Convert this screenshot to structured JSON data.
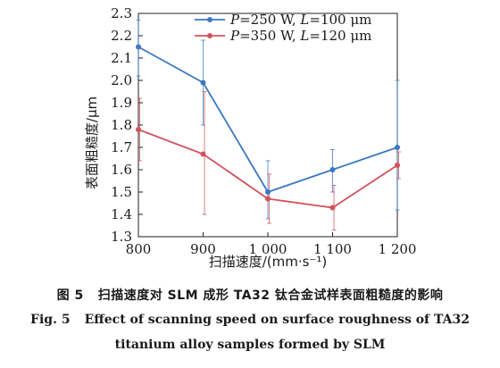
{
  "chart_data": {
    "type": "line",
    "xlabel": "扫描速度/(mm·s⁻¹)",
    "ylabel": "表面粗糙度/μm",
    "x": [
      800,
      900,
      1000,
      1100,
      1200
    ],
    "xticklabels": [
      "800",
      "900",
      "1 000",
      "1 100",
      "1 200"
    ],
    "xlim": [
      800,
      1200
    ],
    "ylim": [
      1.3,
      2.3
    ],
    "yticks": [
      1.3,
      1.4,
      1.5,
      1.6,
      1.7,
      1.8,
      1.9,
      2.0,
      2.1,
      2.2,
      2.3
    ],
    "yticklabels": [
      "1.3",
      "1.4",
      "1.5",
      "1.6",
      "1.7",
      "1.8",
      "1.9",
      "2.0",
      "2.1",
      "2.2",
      "2.3"
    ],
    "grid": false,
    "legend_position": "top",
    "series": [
      {
        "name_parts": [
          "P",
          "=250 W, ",
          "L",
          "=100 μm"
        ],
        "color": "#3a78c2",
        "values": [
          2.15,
          1.99,
          1.5,
          1.6,
          1.7
        ],
        "err_low": [
          2.02,
          1.8,
          1.38,
          1.5,
          1.42
        ],
        "err_high": [
          2.27,
          2.18,
          1.64,
          1.69,
          2.0
        ]
      },
      {
        "name_parts": [
          "P",
          "=350 W, ",
          "L",
          "=120 μm"
        ],
        "color": "#d2525a",
        "values": [
          1.78,
          1.67,
          1.47,
          1.43,
          1.62
        ],
        "err_low": [
          1.64,
          1.4,
          1.36,
          1.33,
          1.56
        ],
        "err_high": [
          1.92,
          1.95,
          1.58,
          1.53,
          1.68
        ]
      }
    ]
  },
  "caption": {
    "cn_number": "图 5",
    "cn_text": "扫描速度对 SLM 成形 TA32 钛合金试样表面粗糙度的影响",
    "en_number": "Fig. 5",
    "en_line1": "Effect of scanning speed on surface roughness of TA32",
    "en_line2": "titanium alloy samples formed by SLM"
  }
}
